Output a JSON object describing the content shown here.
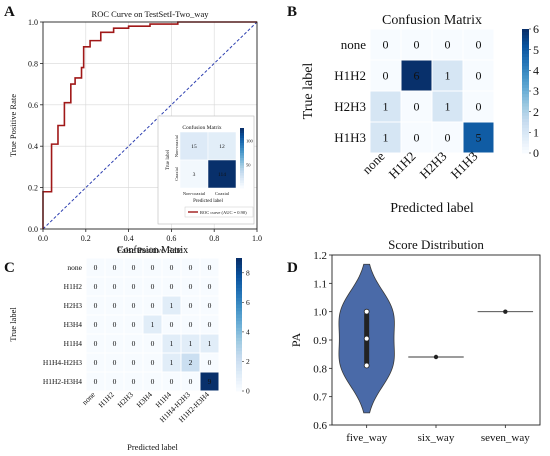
{
  "colors": {
    "roc_line": "#a01818",
    "chance_line": "#2d3fb0",
    "grid": "#d8d8d8",
    "violin": "#4a6aa8"
  },
  "cmap": [
    "#f7fbff",
    "#deebf7",
    "#c6dbef",
    "#9ecae1",
    "#6baed6",
    "#4292c6",
    "#2171b5",
    "#08519c",
    "#08306b"
  ],
  "panel_letters": {
    "a": "A",
    "b": "B",
    "c": "C",
    "d": "D"
  },
  "chart_data": [
    {
      "id": "roc",
      "type": "line",
      "title": "ROC Curve on TestSetI-Two_way",
      "xlabel": "False Positive Rate",
      "ylabel": "True Positive Rate",
      "xlim": [
        0,
        1
      ],
      "ylim": [
        0,
        1
      ],
      "xticks": [
        "0.0",
        "0.2",
        "0.4",
        "0.6",
        "0.8",
        "1.0"
      ],
      "yticks": [
        "0.0",
        "0.2",
        "0.4",
        "0.6",
        "0.8",
        "1.0"
      ],
      "grid": true,
      "legend_label": "ROC curve (AUC = 0.90)",
      "points": [
        [
          0,
          0
        ],
        [
          0,
          0.18
        ],
        [
          0.04,
          0.18
        ],
        [
          0.04,
          0.41
        ],
        [
          0.07,
          0.41
        ],
        [
          0.07,
          0.5
        ],
        [
          0.1,
          0.5
        ],
        [
          0.1,
          0.61
        ],
        [
          0.13,
          0.61
        ],
        [
          0.13,
          0.7
        ],
        [
          0.15,
          0.7
        ],
        [
          0.15,
          0.73
        ],
        [
          0.18,
          0.73
        ],
        [
          0.18,
          0.78
        ],
        [
          0.19,
          0.78
        ],
        [
          0.19,
          0.88
        ],
        [
          0.22,
          0.88
        ],
        [
          0.22,
          0.91
        ],
        [
          0.27,
          0.91
        ],
        [
          0.27,
          0.95
        ],
        [
          0.33,
          0.95
        ],
        [
          0.33,
          0.97
        ],
        [
          0.4,
          0.97
        ],
        [
          0.4,
          0.98
        ],
        [
          0.5,
          0.98
        ],
        [
          0.5,
          0.99
        ],
        [
          0.63,
          0.99
        ],
        [
          0.63,
          1.0
        ],
        [
          1.0,
          1.0
        ]
      ],
      "chance": [
        [
          0,
          0
        ],
        [
          1,
          1
        ]
      ],
      "inset": {
        "title": "Confusion Matrix",
        "xlabel": "Predicted label",
        "ylabel": "True label",
        "labels": [
          "Non-coaxial",
          "Coaxial"
        ],
        "matrix": [
          [
            15,
            12
          ],
          [
            3,
            114
          ]
        ],
        "colorbar_ticks": [
          "100",
          "50"
        ],
        "vmax": 114
      }
    },
    {
      "id": "cm4",
      "type": "heatmap",
      "title": "Confusion Matrix",
      "xlabel": "Predicted label",
      "ylabel": "True label",
      "labels": [
        "none",
        "H1H2",
        "H2H3",
        "H1H3"
      ],
      "matrix": [
        [
          0,
          0,
          0,
          0
        ],
        [
          0,
          6,
          1,
          0
        ],
        [
          1,
          0,
          1,
          0
        ],
        [
          1,
          0,
          0,
          5
        ]
      ],
      "vmax": 6,
      "colorbar_ticks": [
        "0",
        "1",
        "2",
        "3",
        "4",
        "5",
        "6"
      ]
    },
    {
      "id": "cm7",
      "type": "heatmap",
      "title": "Confusion Matrix",
      "xlabel": "Predicted label",
      "ylabel": "True label",
      "labels": [
        "none",
        "H1H2",
        "H2H3",
        "H3H4",
        "H1H4",
        "H1H4-H2H3",
        "H1H2-H3H4"
      ],
      "matrix": [
        [
          0,
          0,
          0,
          0,
          0,
          0,
          0
        ],
        [
          0,
          0,
          0,
          0,
          0,
          0,
          0
        ],
        [
          0,
          0,
          0,
          0,
          1,
          0,
          0
        ],
        [
          0,
          0,
          0,
          1,
          0,
          0,
          0
        ],
        [
          0,
          0,
          0,
          0,
          1,
          1,
          1
        ],
        [
          0,
          0,
          0,
          0,
          1,
          2,
          0
        ],
        [
          0,
          0,
          0,
          0,
          0,
          0,
          9
        ]
      ],
      "vmax": 9,
      "colorbar_ticks": [
        "0",
        "2",
        "4",
        "6",
        "8"
      ]
    },
    {
      "id": "violin",
      "type": "violin",
      "title": "Score Distribution",
      "ylabel": "PA",
      "categories": [
        "five_way",
        "six_way",
        "seven_way"
      ],
      "ylim": [
        0.6,
        1.2
      ],
      "yticks": [
        "0.6",
        "0.7",
        "0.8",
        "0.9",
        "1.0",
        "1.1",
        "1.2"
      ],
      "values": [
        [
          0.81,
          1.0,
          0.82,
          0.99
        ],
        [
          0.84
        ],
        [
          1.0
        ]
      ]
    }
  ]
}
